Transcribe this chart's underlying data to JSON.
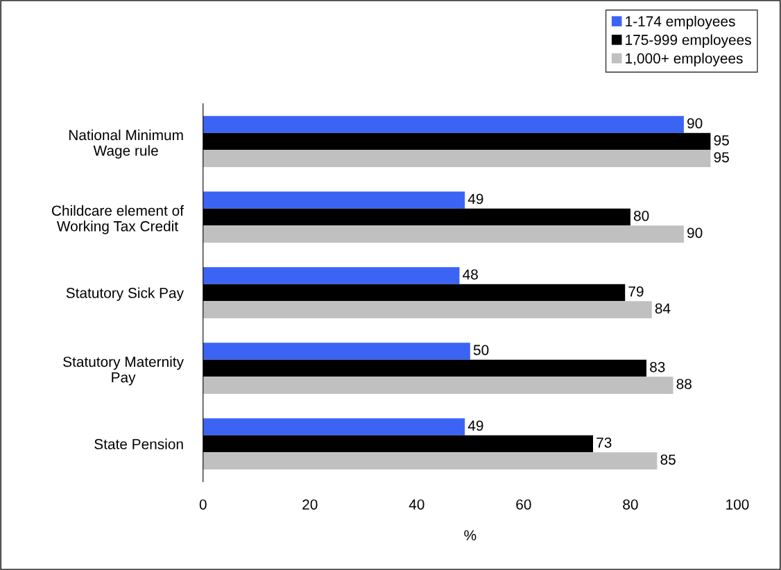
{
  "chart_data": {
    "type": "bar",
    "orientation": "horizontal",
    "xlabel": "%",
    "categories": [
      "National Minimum\nWage rule",
      "Childcare element of\nWorking Tax Credit",
      "Statutory Sick Pay",
      "Statutory Maternity\nPay",
      "State Pension"
    ],
    "series": [
      {
        "name": "1-174 employees",
        "color": "#3b64f5",
        "values": [
          90,
          49,
          48,
          50,
          49
        ]
      },
      {
        "name": "175-999 employees",
        "color": "#000000",
        "values": [
          95,
          80,
          79,
          83,
          73
        ]
      },
      {
        "name": "1,000+ employees",
        "color": "#c0c0c0",
        "values": [
          95,
          90,
          84,
          88,
          85
        ]
      }
    ],
    "xlim": [
      0,
      100
    ],
    "xticks": [
      0,
      20,
      40,
      60,
      80,
      100
    ],
    "data_labels": true,
    "grid": false,
    "legend": "top right"
  }
}
